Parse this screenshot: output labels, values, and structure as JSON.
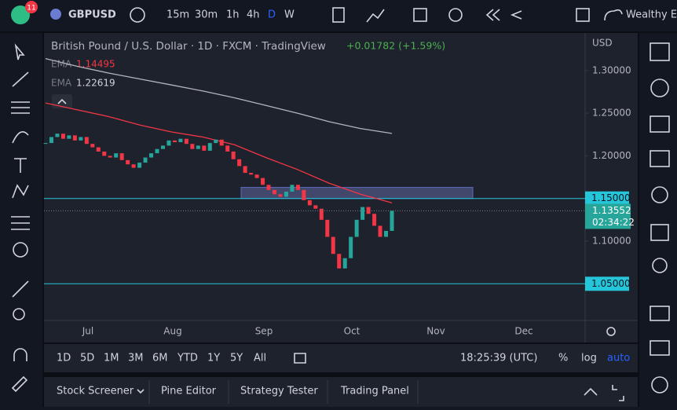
{
  "toolbar": {
    "badge": "11",
    "symbol": "GBPUSD",
    "intervals": [
      "15m",
      "30m",
      "1h",
      "4h",
      "D",
      "W"
    ],
    "account": "Wealthy Ed"
  },
  "chart_data": {
    "type": "candlestick",
    "title": "British Pound / U.S. Dollar · 1D · FXCM · TradingView",
    "change": "+0.01782 (+1.59%)",
    "currency": "USD",
    "x_labels": [
      "Jul",
      "Aug",
      "Sep",
      "Oct",
      "Nov",
      "Dec"
    ],
    "up_color": "#26a69a",
    "down_color": "#f23645",
    "close": [
      1.215,
      1.222,
      1.226,
      1.22,
      1.224,
      1.218,
      1.222,
      1.214,
      1.21,
      1.205,
      1.2,
      1.198,
      1.203,
      1.195,
      1.19,
      1.186,
      1.192,
      1.198,
      1.203,
      1.208,
      1.212,
      1.218,
      1.216,
      1.22,
      1.214,
      1.208,
      1.212,
      1.206,
      1.215,
      1.219,
      1.212,
      1.205,
      1.196,
      1.188,
      1.18,
      1.178,
      1.174,
      1.166,
      1.16,
      1.155,
      1.152,
      1.158,
      1.166,
      1.16,
      1.148,
      1.142,
      1.138,
      1.125,
      1.105,
      1.085,
      1.068,
      1.08,
      1.105,
      1.125,
      1.14,
      1.132,
      1.118,
      1.105,
      1.112,
      1.13552
    ],
    "series": [
      {
        "name": "EMA",
        "color": "#f23645",
        "values": [
          1.262,
          1.254,
          1.246,
          1.236,
          1.228,
          1.222,
          1.213,
          1.198,
          1.184,
          1.168,
          1.155,
          1.14495
        ]
      },
      {
        "name": "EMA",
        "color": "#b2b5be",
        "values": [
          1.314,
          1.305,
          1.297,
          1.29,
          1.283,
          1.276,
          1.268,
          1.259,
          1.25,
          1.24,
          1.232,
          1.22619
        ]
      }
    ],
    "ylim": [
      1.007,
      1.344
    ],
    "yticks": [
      {
        "value": 1.3,
        "label": "1.30000"
      },
      {
        "value": 1.25,
        "label": "1.25000"
      },
      {
        "value": 1.2,
        "label": "1.20000"
      },
      {
        "value": 1.1,
        "label": "1.10000"
      }
    ],
    "levels": [
      {
        "value": 1.15,
        "label": "1.15000"
      },
      {
        "value": 1.05,
        "label": "1.05000"
      }
    ],
    "zone": [
      1.15,
      1.163
    ],
    "countdown": "02:34:22"
  },
  "bottom_bar": {
    "ranges": [
      "1D",
      "5D",
      "1M",
      "3M",
      "6M",
      "YTD",
      "1Y",
      "5Y",
      "All"
    ],
    "clock": "18:25:39 (UTC)",
    "scale_options": [
      "%",
      "log",
      "auto"
    ]
  },
  "tabs": [
    "Stock Screener",
    "Pine Editor",
    "Strategy Tester",
    "Trading Panel"
  ]
}
